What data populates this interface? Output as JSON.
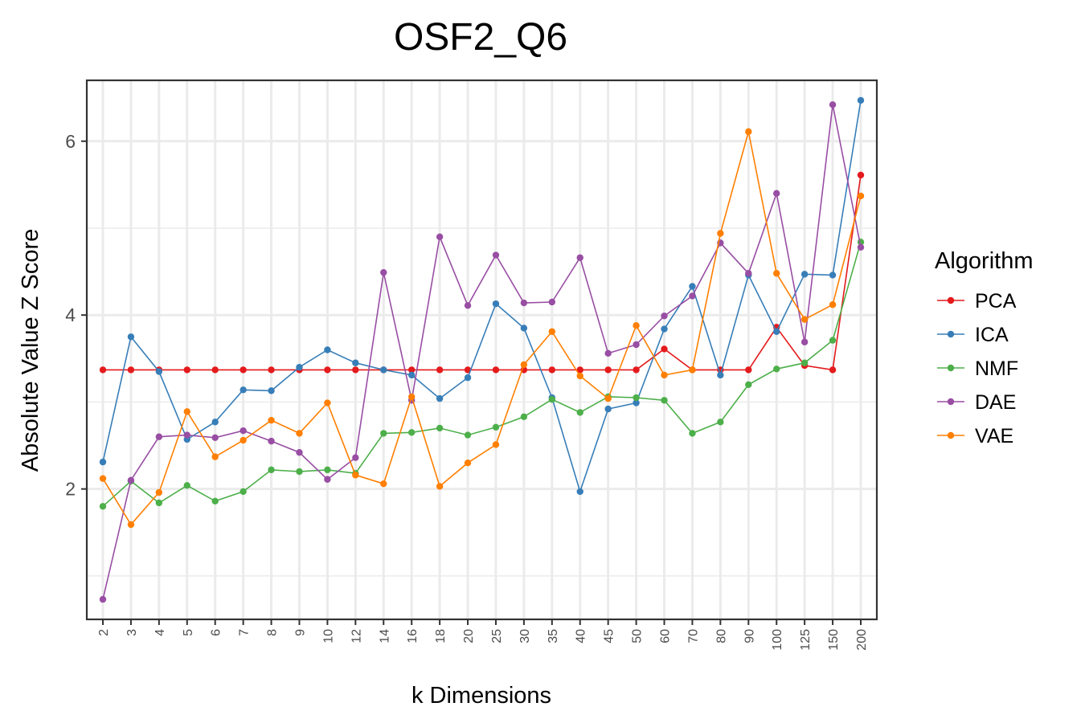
{
  "chart_data": {
    "type": "line",
    "title": "OSF2_Q6",
    "xlabel": "k Dimensions",
    "ylabel": "Absolute Value Z Score",
    "categories": [
      "2",
      "3",
      "4",
      "5",
      "6",
      "7",
      "8",
      "9",
      "10",
      "12",
      "14",
      "16",
      "18",
      "20",
      "25",
      "30",
      "35",
      "40",
      "45",
      "50",
      "60",
      "70",
      "80",
      "90",
      "100",
      "125",
      "150",
      "200"
    ],
    "ylim": [
      0.5,
      6.7
    ],
    "yticks": [
      2,
      4,
      6
    ],
    "grid": true,
    "legend": {
      "title": "Algorithm",
      "position": "right"
    },
    "series": [
      {
        "name": "PCA",
        "color": "#e41a1c",
        "values": [
          3.37,
          3.37,
          3.37,
          3.37,
          3.37,
          3.37,
          3.37,
          3.37,
          3.37,
          3.37,
          3.37,
          3.37,
          3.37,
          3.37,
          3.37,
          3.37,
          3.37,
          3.37,
          3.37,
          3.37,
          3.61,
          3.37,
          3.37,
          3.37,
          3.86,
          3.42,
          3.37,
          5.61
        ]
      },
      {
        "name": "ICA",
        "color": "#377eb8",
        "values": [
          2.31,
          3.75,
          3.35,
          2.57,
          2.77,
          3.14,
          3.13,
          3.4,
          3.6,
          3.45,
          3.37,
          3.31,
          3.04,
          3.28,
          4.13,
          3.85,
          3.05,
          1.97,
          2.92,
          2.99,
          3.84,
          4.33,
          3.31,
          4.46,
          3.81,
          4.47,
          4.46,
          6.47
        ]
      },
      {
        "name": "NMF",
        "color": "#4daf4a",
        "values": [
          1.8,
          2.09,
          1.84,
          2.04,
          1.86,
          1.97,
          2.22,
          2.2,
          2.22,
          2.18,
          2.64,
          2.65,
          2.7,
          2.62,
          2.71,
          2.83,
          3.03,
          2.88,
          3.06,
          3.05,
          3.02,
          2.64,
          2.77,
          3.2,
          3.38,
          3.45,
          3.71,
          4.84
        ]
      },
      {
        "name": "DAE",
        "color": "#984ea3",
        "values": [
          0.73,
          2.1,
          2.6,
          2.62,
          2.59,
          2.67,
          2.55,
          2.42,
          2.11,
          2.36,
          4.49,
          3.02,
          4.9,
          4.11,
          4.69,
          4.14,
          4.15,
          4.66,
          3.56,
          3.66,
          3.99,
          4.22,
          4.83,
          4.48,
          5.4,
          3.69,
          6.42,
          4.78
        ]
      },
      {
        "name": "VAE",
        "color": "#ff7f00",
        "values": [
          2.12,
          1.59,
          1.96,
          2.89,
          2.37,
          2.56,
          2.79,
          2.64,
          2.99,
          2.16,
          2.06,
          3.06,
          2.03,
          2.3,
          2.51,
          3.43,
          3.81,
          3.3,
          3.04,
          3.88,
          3.31,
          3.37,
          4.94,
          6.11,
          4.48,
          3.95,
          4.12,
          5.37
        ]
      }
    ]
  }
}
